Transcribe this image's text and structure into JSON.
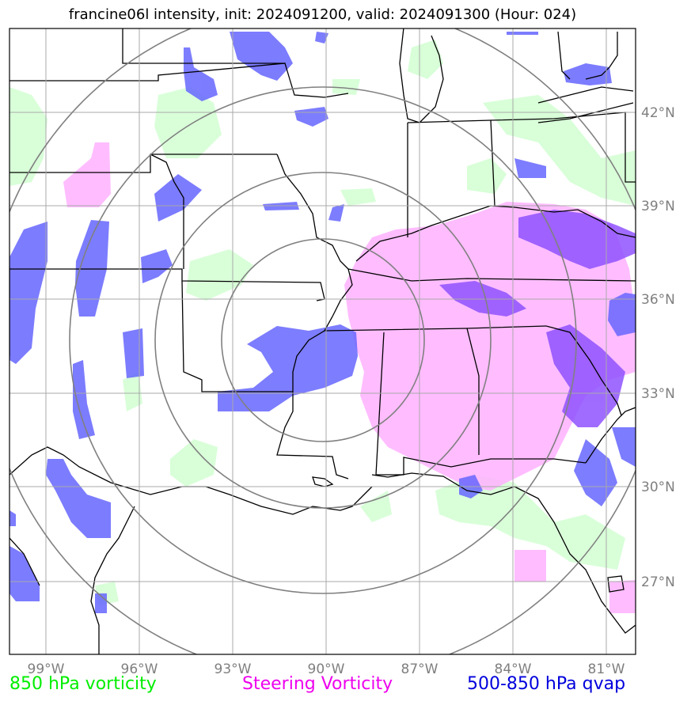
{
  "title": "francine06l intensity, init: 2024091200, valid: 2024091300 (Hour: 024)",
  "colors": {
    "vort850": "#ccffcc",
    "steering": "#ffb2ff",
    "qvap": "#6666ff",
    "overlap": "#8f52ff",
    "grid": "#a9a9a9",
    "ring": "#808080",
    "label": "#7f7f7f"
  },
  "longitude_labels": [
    "99°W",
    "96°W",
    "93°W",
    "90°W",
    "87°W",
    "84°W",
    "81°W"
  ],
  "latitude_labels": [
    "42°N",
    "39°N",
    "36°N",
    "33°N",
    "30°N",
    "27°N"
  ],
  "legend": [
    {
      "label": "850 hPa vorticity",
      "color": "#00ee00"
    },
    {
      "label": "Steering Vorticity",
      "color": "#ee00ee"
    },
    {
      "label": "500-850 hPa qvap",
      "color": "#0000dd"
    }
  ]
}
